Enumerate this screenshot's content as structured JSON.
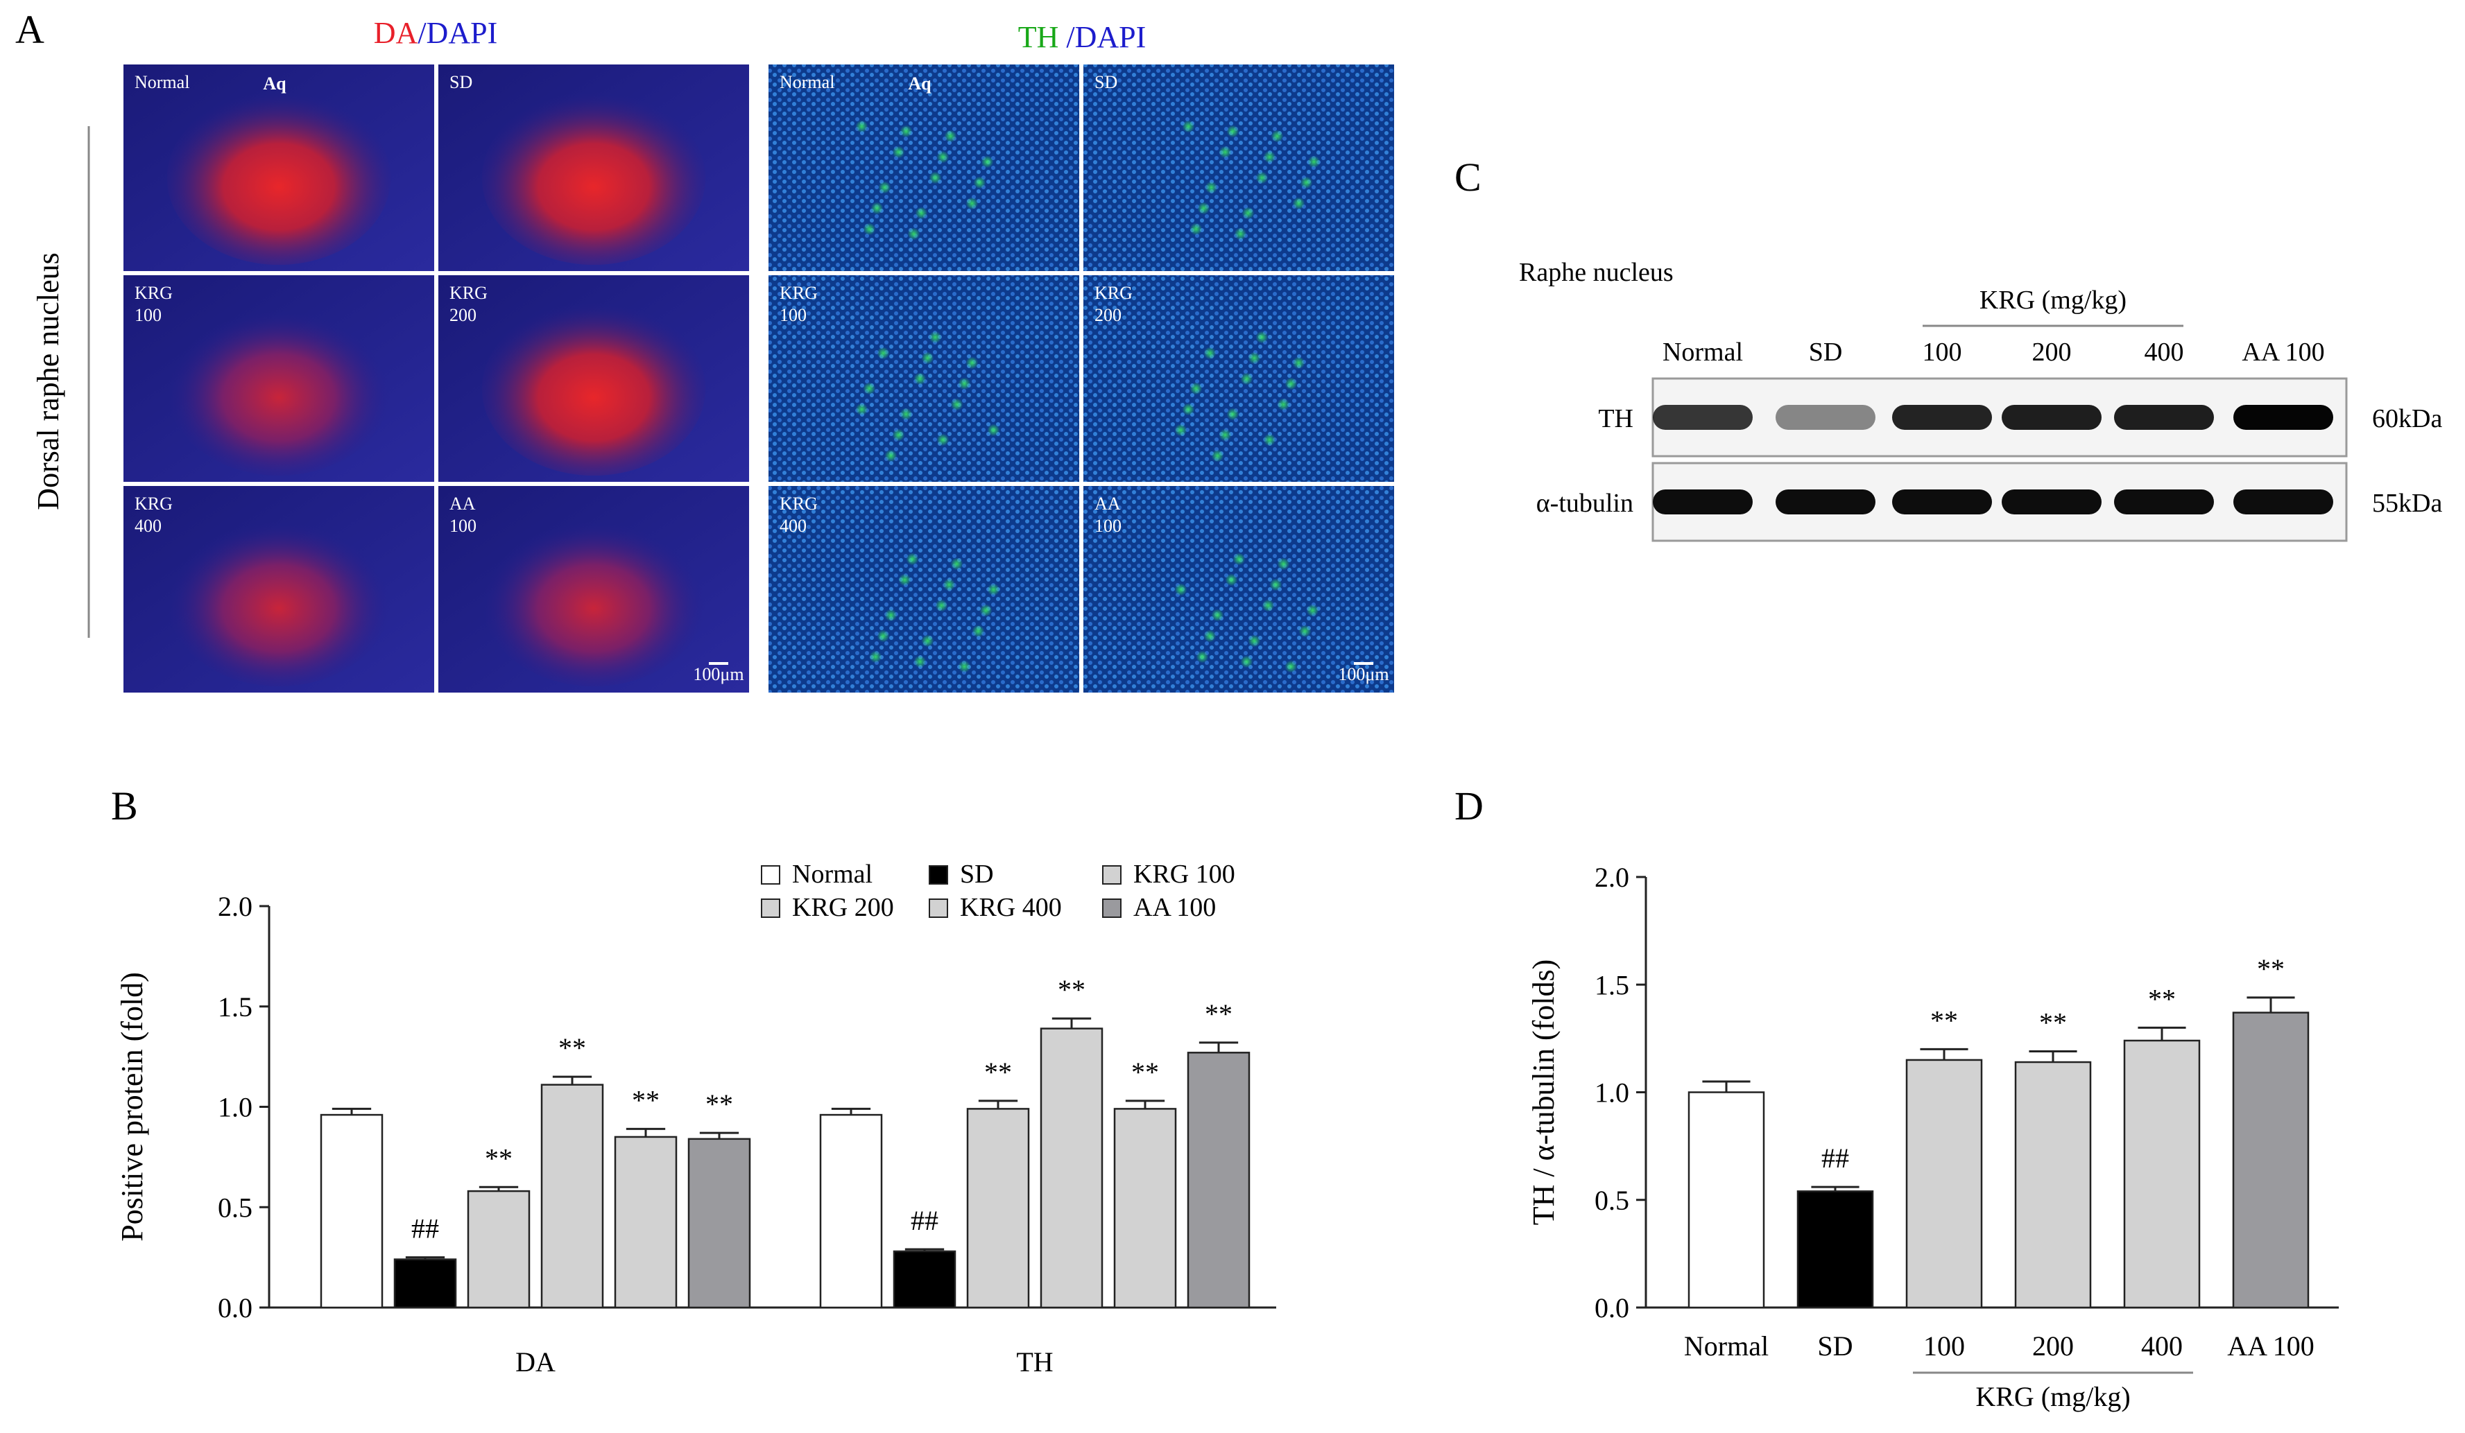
{
  "panels": {
    "A": {
      "letter": "A",
      "region_label": "Dorsal raphe nucleus",
      "stains": [
        {
          "parts": [
            {
              "text": "DA",
              "color": "#e8202a"
            },
            {
              "text": "/",
              "color": "#1c1ccc"
            },
            {
              "text": "DAPI",
              "color": "#1c1ccc"
            }
          ]
        },
        {
          "parts": [
            {
              "text": "TH",
              "color": "#18a818"
            },
            {
              "text": " /",
              "color": "#1c1ccc"
            },
            {
              "text": "DAPI",
              "color": "#1c1ccc"
            }
          ]
        }
      ],
      "tile_labels": [
        [
          "Normal",
          "SD"
        ],
        [
          "KRG\n100",
          "KRG\n200"
        ],
        [
          "KRG\n400",
          "AA\n100"
        ]
      ],
      "aq_label": "Aq",
      "scale_bar": "100μm"
    },
    "B": {
      "letter": "B"
    },
    "C": {
      "letter": "C",
      "title": "Raphe nucleus",
      "group_label": "KRG (mg/kg)",
      "lanes": [
        "Normal",
        "SD",
        "100",
        "200",
        "400",
        "AA 100"
      ],
      "rows": [
        {
          "name": "TH",
          "size": "60kDa",
          "intensity": [
            0.78,
            0.45,
            0.86,
            0.88,
            0.88,
            0.98
          ]
        },
        {
          "name": "α-tubulin",
          "size": "55kDa",
          "intensity": [
            0.95,
            0.95,
            0.95,
            0.95,
            0.95,
            0.95
          ]
        }
      ]
    },
    "D": {
      "letter": "D"
    }
  },
  "chart_data": [
    {
      "id": "B",
      "type": "bar",
      "ylabel": "Positive protein (fold)",
      "ylim": [
        0,
        2.0
      ],
      "yticks": [
        "0.0",
        "0.5",
        "1.0",
        "1.5",
        "2.0"
      ],
      "categories": [
        "DA",
        "TH"
      ],
      "legend_placement": "top-right",
      "series": [
        {
          "name": "Normal",
          "color": "#ffffff",
          "values": [
            0.96,
            0.96
          ],
          "errors": [
            0.03,
            0.03
          ],
          "marks": [
            "",
            ""
          ]
        },
        {
          "name": "SD",
          "color": "#000000",
          "values": [
            0.24,
            0.28
          ],
          "errors": [
            0.01,
            0.01
          ],
          "marks": [
            "##",
            "##"
          ]
        },
        {
          "name": "KRG 100",
          "color": "#d2d2d2",
          "values": [
            0.58,
            0.99
          ],
          "errors": [
            0.02,
            0.04
          ],
          "marks": [
            "**",
            "**"
          ]
        },
        {
          "name": "KRG 200",
          "color": "#d2d2d2",
          "values": [
            1.11,
            1.39
          ],
          "errors": [
            0.04,
            0.05
          ],
          "marks": [
            "**",
            "**"
          ]
        },
        {
          "name": "KRG 400",
          "color": "#d2d2d2",
          "values": [
            0.85,
            0.99
          ],
          "errors": [
            0.04,
            0.04
          ],
          "marks": [
            "**",
            "**"
          ]
        },
        {
          "name": "AA 100",
          "color": "#9a9a9e",
          "values": [
            0.84,
            1.27
          ],
          "errors": [
            0.03,
            0.05
          ],
          "marks": [
            "**",
            "**"
          ]
        }
      ]
    },
    {
      "id": "D",
      "type": "bar",
      "ylabel": "TH / α-tubulin (folds)",
      "ylim": [
        0,
        2.0
      ],
      "yticks": [
        "0.0",
        "0.5",
        "1.0",
        "1.5",
        "2.0"
      ],
      "categories": [
        "Normal",
        "SD",
        "100",
        "200",
        "400",
        "AA 100"
      ],
      "group_label": "KRG (mg/kg)",
      "colors": [
        "#ffffff",
        "#000000",
        "#d2d2d2",
        "#d2d2d2",
        "#d2d2d2",
        "#9a9a9e"
      ],
      "values": [
        1.0,
        0.54,
        1.15,
        1.14,
        1.24,
        1.37
      ],
      "errors": [
        0.05,
        0.02,
        0.05,
        0.05,
        0.06,
        0.07
      ],
      "marks": [
        "",
        "##",
        "**",
        "**",
        "**",
        "**"
      ]
    }
  ]
}
